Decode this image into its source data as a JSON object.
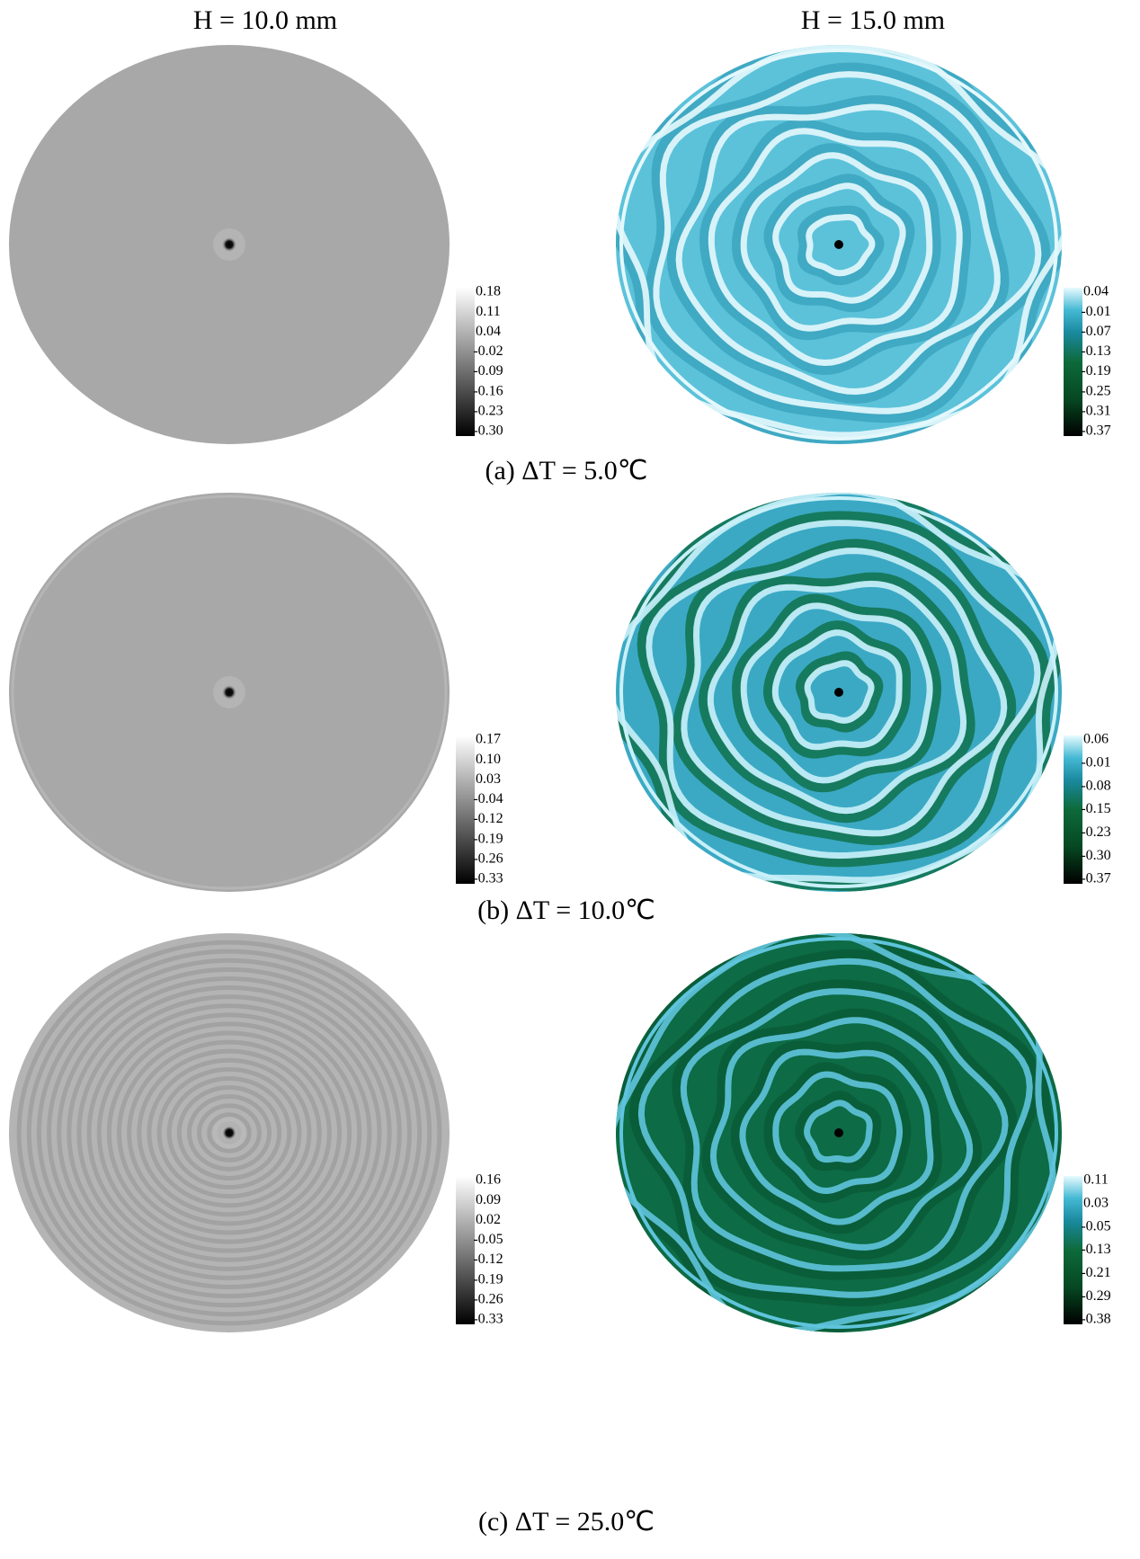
{
  "column_headers": [
    "H = 10.0 mm",
    "H = 15.0 mm"
  ],
  "rows": [
    {
      "caption": "(a) ΔT = 5.0℃",
      "panels": [
        {
          "colorbar_labels": [
            "0.18",
            "0.11",
            "0.04",
            "-0.02",
            "-0.09",
            "-0.16",
            "-0.23",
            "-0.30"
          ]
        },
        {
          "colorbar_labels": [
            "0.04",
            "-0.01",
            "-0.07",
            "-0.13",
            "-0.19",
            "-0.25",
            "-0.31",
            "-0.37"
          ]
        }
      ]
    },
    {
      "caption": "(b) ΔT = 10.0℃",
      "panels": [
        {
          "colorbar_labels": [
            "0.17",
            "0.10",
            "0.03",
            "-0.04",
            "-0.12",
            "-0.19",
            "-0.26",
            "-0.33"
          ]
        },
        {
          "colorbar_labels": [
            "0.06",
            "-0.01",
            "-0.08",
            "-0.15",
            "-0.23",
            "-0.30",
            "-0.37"
          ]
        }
      ]
    },
    {
      "caption": "(c) ΔT = 25.0℃",
      "panels": [
        {
          "colorbar_labels": [
            "0.16",
            "0.09",
            "0.02",
            "-0.05",
            "-0.12",
            "-0.19",
            "-0.26",
            "-0.33"
          ]
        },
        {
          "colorbar_labels": [
            "0.11",
            "0.03",
            "-0.05",
            "-0.13",
            "-0.21",
            "-0.29",
            "-0.38"
          ]
        }
      ]
    }
  ]
}
